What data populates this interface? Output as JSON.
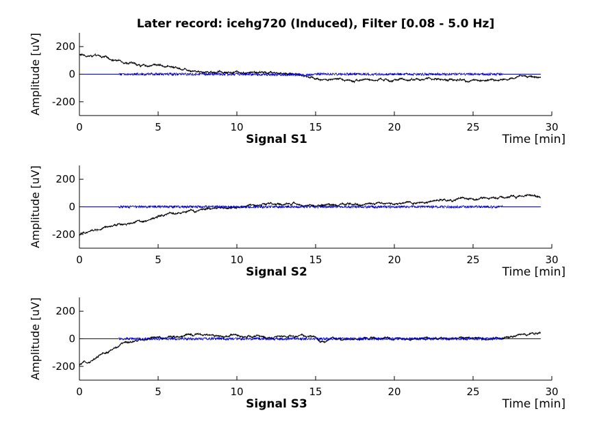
{
  "figure": {
    "title": "Later record: icehg720 (Induced), Filter [0.08 - 5.0 Hz]"
  },
  "chart_data": [
    {
      "type": "line",
      "subtitle": "Signal S1",
      "xlabel": "Time [min]",
      "ylabel": "Amplitude [uV]",
      "xlim": [
        0,
        30
      ],
      "ylim": [
        -300,
        300
      ],
      "xticks": [
        "0",
        "5",
        "10",
        "15",
        "20",
        "25",
        "30"
      ],
      "yticks": [
        "200",
        "0",
        "-200"
      ],
      "series": [
        {
          "color": "#000000",
          "x": [
            0,
            1,
            2,
            3,
            4,
            5,
            6,
            7,
            8,
            10,
            12,
            14,
            14.5,
            15,
            16,
            18,
            20,
            22,
            24,
            26,
            27.5,
            28,
            29.3
          ],
          "y": [
            140,
            130,
            110,
            90,
            60,
            70,
            50,
            35,
            20,
            15,
            10,
            0,
            -20,
            -30,
            -45,
            -40,
            -45,
            -35,
            -40,
            -45,
            -40,
            -10,
            -20
          ]
        },
        {
          "color": "#0000cc",
          "x": [
            0,
            2.5,
            5,
            10,
            14.5,
            15,
            20,
            25,
            26.9,
            29.3
          ],
          "y": [
            0,
            0,
            0,
            0,
            -5,
            0,
            0,
            0,
            0,
            0
          ]
        }
      ]
    },
    {
      "type": "line",
      "subtitle": "Signal S2",
      "xlabel": "Time [min]",
      "ylabel": "Amplitude [uV]",
      "xlim": [
        0,
        30
      ],
      "ylim": [
        -300,
        300
      ],
      "xticks": [
        "0",
        "5",
        "10",
        "15",
        "20",
        "25",
        "30"
      ],
      "yticks": [
        "200",
        "0",
        "-200"
      ],
      "series": [
        {
          "color": "#000000",
          "x": [
            0,
            1,
            2,
            3,
            4,
            5,
            6,
            7,
            8,
            10,
            12,
            14,
            15,
            16,
            18,
            20,
            22,
            24,
            26,
            28,
            29.3
          ],
          "y": [
            -200,
            -170,
            -150,
            -120,
            -100,
            -70,
            -50,
            -40,
            -20,
            0,
            15,
            20,
            5,
            20,
            25,
            30,
            40,
            50,
            60,
            80,
            75
          ]
        },
        {
          "color": "#0000cc",
          "x": [
            0,
            2.5,
            5,
            10,
            15,
            20,
            25,
            26.9,
            29.3
          ],
          "y": [
            0,
            0,
            0,
            0,
            0,
            0,
            0,
            0,
            0
          ]
        }
      ]
    },
    {
      "type": "line",
      "subtitle": "Signal S3",
      "xlabel": "Time [min]",
      "ylabel": "Amplitude [uV]",
      "xlim": [
        0,
        30
      ],
      "ylim": [
        -300,
        300
      ],
      "xticks": [
        "0",
        "5",
        "10",
        "15",
        "20",
        "25",
        "30"
      ],
      "yticks": [
        "200",
        "0",
        "-200"
      ],
      "series": [
        {
          "color": "#000000",
          "x": [
            0,
            0.5,
            1,
            1.5,
            2,
            2.5,
            3,
            4,
            5,
            6,
            7,
            8,
            10,
            12,
            14,
            15,
            15.3,
            16,
            18,
            20,
            22,
            24,
            26,
            27,
            28,
            29.3
          ],
          "y": [
            -190,
            -170,
            -140,
            -110,
            -80,
            -50,
            -25,
            0,
            5,
            20,
            25,
            20,
            20,
            15,
            20,
            10,
            -30,
            0,
            0,
            0,
            5,
            0,
            5,
            10,
            25,
            40
          ]
        },
        {
          "color": "#0000cc",
          "x": [
            0,
            2.5,
            5,
            10,
            15,
            20,
            25,
            26.9,
            29.3
          ],
          "y": [
            0,
            0,
            0,
            0,
            0,
            0,
            0,
            0,
            0
          ]
        }
      ]
    }
  ]
}
